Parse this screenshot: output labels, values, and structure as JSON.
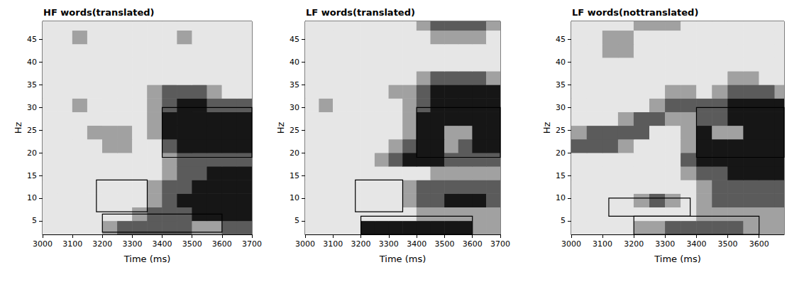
{
  "chart_data": [
    {
      "type": "heatmap",
      "title": "HF words(translated)",
      "x_label": "Time (ms)",
      "y_label": "Hz",
      "xlim": [
        3000,
        3700
      ],
      "xticks": [
        3000,
        3100,
        3200,
        3300,
        3400,
        3500,
        3600,
        3700
      ],
      "ylim": [
        2,
        49
      ],
      "yticks": [
        5,
        10,
        15,
        20,
        25,
        30,
        35,
        40,
        45
      ],
      "color_range": [
        0,
        3
      ],
      "cells": {
        "x_edges": [
          3000,
          3050,
          3100,
          3150,
          3200,
          3250,
          3300,
          3350,
          3400,
          3450,
          3500,
          3550,
          3600,
          3650,
          3700
        ],
        "y_edges": [
          2,
          5,
          8,
          11,
          14,
          17,
          20,
          23,
          26,
          29,
          32,
          35,
          38,
          41,
          44,
          47,
          50
        ],
        "levels": [
          [
            0,
            0,
            0,
            0,
            1,
            2,
            2,
            2,
            2,
            2,
            1,
            1,
            2,
            2
          ],
          [
            0,
            0,
            0,
            0,
            0,
            0,
            1,
            2,
            2,
            2,
            3,
            3,
            3,
            3
          ],
          [
            0,
            0,
            0,
            0,
            0,
            0,
            0,
            1,
            2,
            3,
            3,
            3,
            3,
            3
          ],
          [
            0,
            0,
            0,
            0,
            0,
            0,
            0,
            1,
            2,
            2,
            3,
            3,
            3,
            3
          ],
          [
            0,
            0,
            0,
            0,
            0,
            0,
            0,
            0,
            1,
            2,
            2,
            3,
            3,
            3
          ],
          [
            0,
            0,
            0,
            0,
            0,
            0,
            0,
            0,
            1,
            2,
            2,
            2,
            2,
            2
          ],
          [
            0,
            0,
            0,
            0,
            1,
            1,
            0,
            0,
            2,
            3,
            3,
            3,
            3,
            3
          ],
          [
            0,
            0,
            0,
            1,
            1,
            1,
            0,
            1,
            3,
            3,
            3,
            3,
            3,
            3
          ],
          [
            0,
            0,
            0,
            0,
            0,
            0,
            0,
            1,
            3,
            3,
            3,
            3,
            3,
            3
          ],
          [
            0,
            0,
            1,
            0,
            0,
            0,
            0,
            1,
            2,
            3,
            3,
            2,
            2,
            2
          ],
          [
            0,
            0,
            0,
            0,
            0,
            0,
            0,
            1,
            2,
            2,
            2,
            1,
            0,
            0
          ],
          [
            0,
            0,
            0,
            0,
            0,
            0,
            0,
            0,
            0,
            0,
            0,
            0,
            0,
            0
          ],
          [
            0,
            0,
            0,
            0,
            0,
            0,
            0,
            0,
            0,
            0,
            0,
            0,
            0,
            0
          ],
          [
            0,
            0,
            0,
            0,
            0,
            0,
            0,
            0,
            0,
            0,
            0,
            0,
            0,
            0
          ],
          [
            0,
            0,
            1,
            0,
            0,
            0,
            0,
            0,
            0,
            1,
            0,
            0,
            0,
            0
          ],
          [
            0,
            0,
            0,
            0,
            0,
            0,
            0,
            0,
            0,
            0,
            0,
            0,
            0,
            0
          ]
        ]
      },
      "boxes": [
        {
          "x": [
            3400,
            3700
          ],
          "y": [
            19,
            30
          ]
        },
        {
          "x": [
            3180,
            3350
          ],
          "y": [
            7,
            14
          ]
        },
        {
          "x": [
            3200,
            3600
          ],
          "y": [
            2.5,
            6.5
          ]
        }
      ]
    },
    {
      "type": "heatmap",
      "title": "LF words(translated)",
      "x_label": "Time (ms)",
      "y_label": "Hz",
      "xlim": [
        3000,
        3700
      ],
      "xticks": [
        3000,
        3100,
        3200,
        3300,
        3400,
        3500,
        3600,
        3700
      ],
      "ylim": [
        2,
        49
      ],
      "yticks": [
        5,
        10,
        15,
        20,
        25,
        30,
        35,
        40,
        45
      ],
      "color_range": [
        0,
        3
      ],
      "cells": {
        "x_edges": [
          3000,
          3050,
          3100,
          3150,
          3200,
          3250,
          3300,
          3350,
          3400,
          3450,
          3500,
          3550,
          3600,
          3650,
          3700
        ],
        "y_edges": [
          2,
          5,
          8,
          11,
          14,
          17,
          20,
          23,
          26,
          29,
          32,
          35,
          38,
          41,
          44,
          47,
          50
        ],
        "levels": [
          [
            0,
            0,
            0,
            0,
            3,
            3,
            3,
            3,
            3,
            3,
            3,
            3,
            1,
            1
          ],
          [
            0,
            0,
            0,
            0,
            0,
            0,
            0,
            0,
            1,
            1,
            1,
            1,
            1,
            1
          ],
          [
            0,
            0,
            0,
            0,
            0,
            0,
            0,
            1,
            2,
            2,
            3,
            3,
            3,
            2
          ],
          [
            0,
            0,
            0,
            0,
            0,
            0,
            0,
            1,
            2,
            2,
            2,
            2,
            2,
            2
          ],
          [
            0,
            0,
            0,
            0,
            0,
            0,
            0,
            0,
            0,
            1,
            1,
            1,
            1,
            1
          ],
          [
            0,
            0,
            0,
            0,
            0,
            1,
            2,
            3,
            3,
            3,
            2,
            2,
            2,
            2
          ],
          [
            0,
            0,
            0,
            0,
            0,
            0,
            1,
            2,
            3,
            3,
            1,
            2,
            3,
            3
          ],
          [
            0,
            0,
            0,
            0,
            0,
            0,
            0,
            1,
            3,
            3,
            1,
            1,
            3,
            3
          ],
          [
            0,
            0,
            0,
            0,
            0,
            0,
            0,
            1,
            3,
            3,
            3,
            3,
            3,
            3
          ],
          [
            0,
            1,
            0,
            0,
            0,
            0,
            0,
            1,
            2,
            3,
            3,
            3,
            3,
            3
          ],
          [
            0,
            0,
            0,
            0,
            0,
            0,
            1,
            1,
            2,
            3,
            3,
            3,
            3,
            3
          ],
          [
            0,
            0,
            0,
            0,
            0,
            0,
            0,
            0,
            1,
            2,
            2,
            2,
            2,
            1
          ],
          [
            0,
            0,
            0,
            0,
            0,
            0,
            0,
            0,
            0,
            0,
            0,
            0,
            0,
            0
          ],
          [
            0,
            0,
            0,
            0,
            0,
            0,
            0,
            0,
            0,
            0,
            0,
            0,
            0,
            0
          ],
          [
            0,
            0,
            0,
            0,
            0,
            0,
            0,
            0,
            0,
            1,
            1,
            1,
            1,
            0
          ],
          [
            0,
            0,
            0,
            0,
            0,
            0,
            0,
            0,
            1,
            2,
            2,
            2,
            2,
            1
          ]
        ]
      },
      "boxes": [
        {
          "x": [
            3400,
            3700
          ],
          "y": [
            19,
            30
          ]
        },
        {
          "x": [
            3180,
            3350
          ],
          "y": [
            7,
            14
          ]
        },
        {
          "x": [
            3200,
            3600
          ],
          "y": [
            2,
            6
          ]
        }
      ]
    },
    {
      "type": "heatmap",
      "title": "LF words(nottranslated)",
      "x_label": "Time (ms)",
      "y_label": "Hz",
      "xlim": [
        3000,
        3680
      ],
      "xticks": [
        3000,
        3100,
        3200,
        3300,
        3400,
        3500,
        3600
      ],
      "ylim": [
        2,
        49
      ],
      "yticks": [
        5,
        10,
        15,
        20,
        25,
        30,
        35,
        40,
        45
      ],
      "color_range": [
        0,
        3
      ],
      "cells": {
        "x_edges": [
          3000,
          3050,
          3100,
          3150,
          3200,
          3250,
          3300,
          3350,
          3400,
          3450,
          3500,
          3550,
          3600,
          3650,
          3700
        ],
        "y_edges": [
          2,
          5,
          8,
          11,
          14,
          17,
          20,
          23,
          26,
          29,
          32,
          35,
          38,
          41,
          44,
          47,
          50
        ],
        "levels": [
          [
            0,
            0,
            0,
            0,
            1,
            1,
            2,
            2,
            2,
            2,
            2,
            1,
            1,
            1
          ],
          [
            0,
            0,
            0,
            0,
            0,
            0,
            0,
            0,
            1,
            1,
            1,
            1,
            1,
            1
          ],
          [
            0,
            0,
            0,
            0,
            1,
            2,
            1,
            0,
            1,
            2,
            2,
            2,
            2,
            2
          ],
          [
            0,
            0,
            0,
            0,
            0,
            0,
            0,
            0,
            1,
            2,
            2,
            2,
            2,
            2
          ],
          [
            0,
            0,
            0,
            0,
            0,
            0,
            0,
            1,
            2,
            2,
            3,
            3,
            3,
            3
          ],
          [
            0,
            0,
            0,
            0,
            0,
            0,
            0,
            2,
            3,
            3,
            3,
            3,
            3,
            3
          ],
          [
            2,
            2,
            2,
            1,
            0,
            0,
            0,
            1,
            3,
            3,
            3,
            3,
            3,
            3
          ],
          [
            1,
            2,
            2,
            2,
            2,
            0,
            0,
            1,
            3,
            1,
            1,
            3,
            3,
            3
          ],
          [
            0,
            0,
            0,
            1,
            2,
            2,
            1,
            1,
            2,
            2,
            3,
            3,
            3,
            3
          ],
          [
            0,
            0,
            0,
            0,
            0,
            1,
            2,
            2,
            2,
            2,
            3,
            3,
            3,
            3
          ],
          [
            0,
            0,
            0,
            0,
            0,
            0,
            1,
            1,
            0,
            1,
            2,
            2,
            2,
            1
          ],
          [
            0,
            0,
            0,
            0,
            0,
            0,
            0,
            0,
            0,
            0,
            1,
            1,
            0,
            0
          ],
          [
            0,
            0,
            0,
            0,
            0,
            0,
            0,
            0,
            0,
            0,
            0,
            0,
            0,
            0
          ],
          [
            0,
            0,
            1,
            1,
            0,
            0,
            0,
            0,
            0,
            0,
            0,
            0,
            0,
            0
          ],
          [
            0,
            0,
            1,
            1,
            0,
            0,
            0,
            0,
            0,
            0,
            0,
            0,
            0,
            0
          ],
          [
            0,
            0,
            0,
            0,
            1,
            1,
            1,
            0,
            0,
            0,
            0,
            0,
            0,
            0
          ]
        ]
      },
      "boxes": [
        {
          "x": [
            3400,
            3680
          ],
          "y": [
            19,
            30
          ]
        },
        {
          "x": [
            3120,
            3380
          ],
          "y": [
            6,
            10
          ]
        },
        {
          "x": [
            3200,
            3600
          ],
          "y": [
            2,
            6
          ]
        }
      ]
    }
  ]
}
